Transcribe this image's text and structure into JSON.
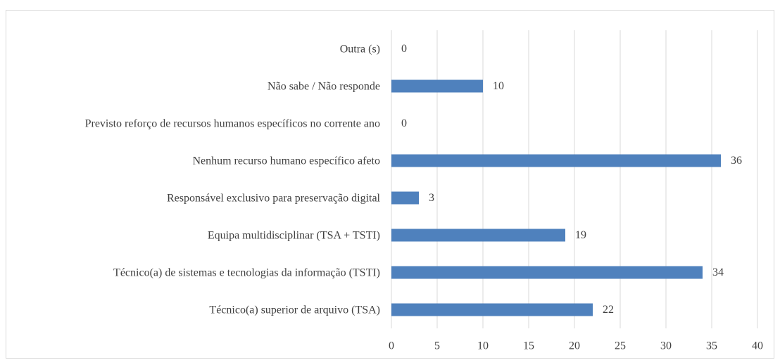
{
  "chart_data": {
    "type": "barh",
    "categories": [
      "Outra (s)",
      "Não sabe / Não responde",
      "Previsto reforço de recursos humanos específicos no corrente ano",
      "Nenhum recurso humano específico afeto",
      "Responsável exclusivo para preservação digital",
      "Equipa multidisciplinar (TSA + TSTI)",
      "Técnico(a) de sistemas e tecnologias da informação (TSTI)",
      "Técnico(a) superior de arquivo (TSA)"
    ],
    "values": [
      0,
      10,
      0,
      36,
      3,
      19,
      34,
      22
    ],
    "color": "#4f81bd",
    "xlim": [
      0,
      40
    ],
    "xticks": [
      0,
      5,
      10,
      15,
      20,
      25,
      30,
      35,
      40
    ],
    "grid": true
  }
}
